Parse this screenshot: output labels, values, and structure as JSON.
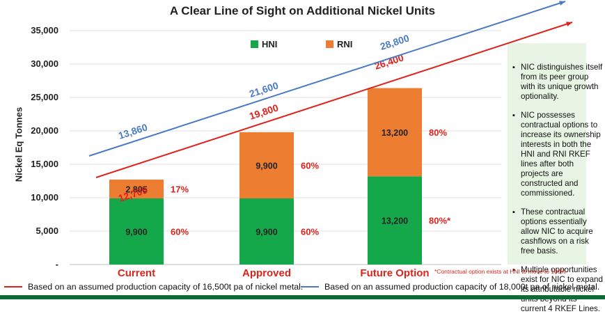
{
  "chart_data": {
    "type": "bar",
    "title": "A Clear Line of Sight on Additional Nickel Units",
    "ylabel": "Nickel Eq Tonnes",
    "ylim": [
      0,
      35000
    ],
    "yticks": [
      "35,000",
      "30,000",
      "25,000",
      "20,000",
      "15,000",
      "10,000",
      "5,000",
      "-"
    ],
    "ytick_values": [
      35000,
      30000,
      25000,
      20000,
      15000,
      10000,
      5000,
      0
    ],
    "categories": [
      "Current",
      "Approved",
      "Future Option"
    ],
    "stacked": true,
    "series": [
      {
        "name": "HNI",
        "color": "#14a84b",
        "values": [
          9900,
          9900,
          13200
        ],
        "labels": [
          "9,900",
          "9,900",
          "13,200"
        ],
        "pct": [
          "60%",
          "60%",
          "80%*"
        ]
      },
      {
        "name": "RNI",
        "color": "#ec7d31",
        "values": [
          2805,
          9900,
          13200
        ],
        "labels": [
          "2,805",
          "9,900",
          "13,200"
        ],
        "pct": [
          "17%",
          "60%",
          "80%"
        ]
      }
    ],
    "trend_lines": [
      {
        "color": "#e0221b",
        "values": [
          12705,
          19800,
          26400
        ],
        "labels": [
          "12,705",
          "19,800",
          "26,400"
        ]
      },
      {
        "color": "#4a7bc2",
        "values": [
          13860,
          21600,
          28800
        ],
        "labels": [
          "13,860",
          "21,600",
          "28,800"
        ]
      }
    ],
    "grid": true,
    "legend_position": "top-center"
  },
  "highlight_color": "#e8f4e4",
  "bullets": [
    "NIC distinguishes itself from its peer group with its unique growth optionality.",
    "NIC possesses contractual options to increase its ownership interests in both the HNI and RNI RKEF lines after both projects are constructed and commissioned.",
    "These contractual options essentially allow NIC to acquire cashflows on a risk free basis.",
    "Multiple opportunities exist for NIC to expand its attributable nickel units beyond its current 4 RKEF Lines."
  ],
  "footnote": "*Contractual option exists at HNI to move to 100%",
  "footer_legend": [
    {
      "color": "#e0221b",
      "text": "Based on an assumed production capacity of 16,500t pa of nickel metal."
    },
    {
      "color": "#4a7bc2",
      "text": "Based on an assumed production capacity of 18,000t  pa of nickel metal."
    }
  ],
  "brand_bar_color": "#0e6b33"
}
